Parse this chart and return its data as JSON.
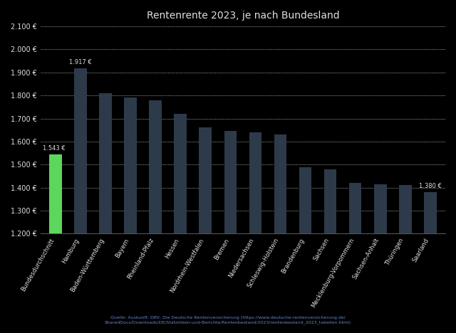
{
  "title": "Rentenrente 2023, je nach Bundesland",
  "categories": [
    "Bundesdurchschnitt",
    "Hamburg",
    "Baden-Württemberg",
    "Bayern",
    "Rheinland-Pfalz",
    "Hessen",
    "Nordrhein-Westfalen",
    "Bremen",
    "Niedersachsen",
    "Schleswig-Holstein",
    "Brandenburg",
    "Sachsen",
    "Mecklenburg-Vorpommern",
    "Sachsen-Anhalt",
    "Thüringen",
    "Saarland"
  ],
  "values": [
    1543,
    1917,
    1810,
    1790,
    1780,
    1720,
    1660,
    1645,
    1640,
    1630,
    1490,
    1480,
    1420,
    1415,
    1410,
    1380
  ],
  "highlight_indices": [
    0
  ],
  "bar_color_highlight": "#5cd65c",
  "bar_color_normal": "#2d3a4a",
  "value_label_bar1": "1.917 €",
  "value_label_bar0": "1.543 €",
  "value_label_last": "1.380 €",
  "ylim_min": 1200,
  "ylim_max": 2100,
  "yticks": [
    1200,
    1300,
    1400,
    1500,
    1600,
    1700,
    1800,
    1900,
    2000,
    2100
  ],
  "ytick_labels": [
    "1.200 €",
    "1.300 €",
    "1.400 €",
    "1.500 €",
    "1.600 €",
    "1.700 €",
    "1.800 €",
    "1.900 €",
    "2.000 €",
    "2.100 €"
  ],
  "source_line1": "Quelle: Auskunft: DRV, Die Deutsche Rentenversicherung (https://www.deutsche-rentenversicherung.de/",
  "source_line2": "SharedDocs/Downloads/DE/Statistiken-und-Berichte/Rentenbestand/2023/rentenbestand_2023_tabellen.html)",
  "fig_bg": "#000000",
  "plot_bg": "#000000",
  "grid_color": "#ffffff",
  "text_color": "#e0e0e0",
  "title_fontsize": 10,
  "tick_fontsize": 7,
  "xlabel_fontsize": 6
}
